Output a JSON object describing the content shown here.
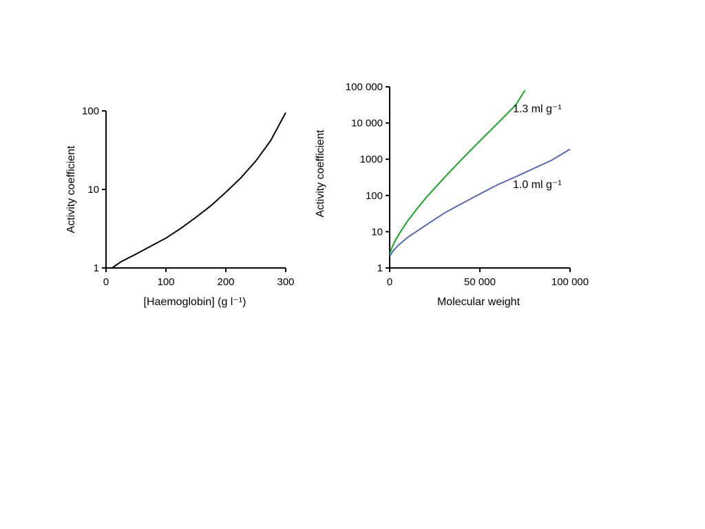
{
  "chart_data": [
    {
      "type": "line",
      "title": "",
      "xlabel": "[Haemoglobin] (g l⁻¹)",
      "ylabel": "Activity coefficient",
      "xscale": "linear",
      "yscale": "log",
      "xlim": [
        0,
        300
      ],
      "ylim": [
        1,
        100
      ],
      "x_ticks": [
        0,
        100,
        200,
        300
      ],
      "x_tick_labels": [
        "0",
        "100",
        "200",
        "300"
      ],
      "y_ticks": [
        1,
        10,
        100
      ],
      "y_tick_labels": [
        "1",
        "10",
        "100"
      ],
      "grid": false,
      "series": [
        {
          "color": "#000000",
          "x": [
            10,
            25,
            50,
            75,
            100,
            125,
            150,
            175,
            200,
            225,
            250,
            275,
            300
          ],
          "y": [
            1.0,
            1.2,
            1.5,
            1.9,
            2.4,
            3.2,
            4.4,
            6.2,
            9.2,
            14,
            23,
            42,
            95
          ]
        }
      ]
    },
    {
      "type": "line",
      "title": "",
      "xlabel": "Molecular weight",
      "ylabel": "Activity coefficient",
      "xscale": "linear",
      "yscale": "log",
      "xlim": [
        0,
        100000
      ],
      "ylim": [
        1,
        100000
      ],
      "x_ticks": [
        0,
        50000,
        100000
      ],
      "x_tick_labels": [
        "0",
        "50 000",
        "100 000"
      ],
      "y_ticks": [
        1,
        10,
        100,
        1000,
        10000,
        100000
      ],
      "y_tick_labels": [
        "1",
        "10",
        "100",
        "1000",
        "10 000",
        "100 000"
      ],
      "grid": false,
      "series": [
        {
          "color": "#1aa02a",
          "x": [
            0,
            1000,
            3000,
            6000,
            10000,
            15000,
            20000,
            30000,
            40000,
            50000,
            60000,
            70000,
            75000
          ],
          "y": [
            2.4,
            3.4,
            5.6,
            10,
            20,
            42,
            85,
            300,
            1000,
            3200,
            10000,
            32000,
            80000
          ]
        },
        {
          "color": "#5566aa",
          "x": [
            0,
            2000,
            5000,
            10000,
            20000,
            30000,
            40000,
            50000,
            60000,
            70000,
            80000,
            90000,
            100000
          ],
          "y": [
            2.1,
            3.0,
            4.3,
            7,
            15,
            32,
            60,
            110,
            200,
            330,
            560,
            950,
            1900
          ]
        }
      ],
      "annotations": [
        "1.3 ml g⁻¹",
        "1.0 ml g⁻¹"
      ]
    }
  ]
}
